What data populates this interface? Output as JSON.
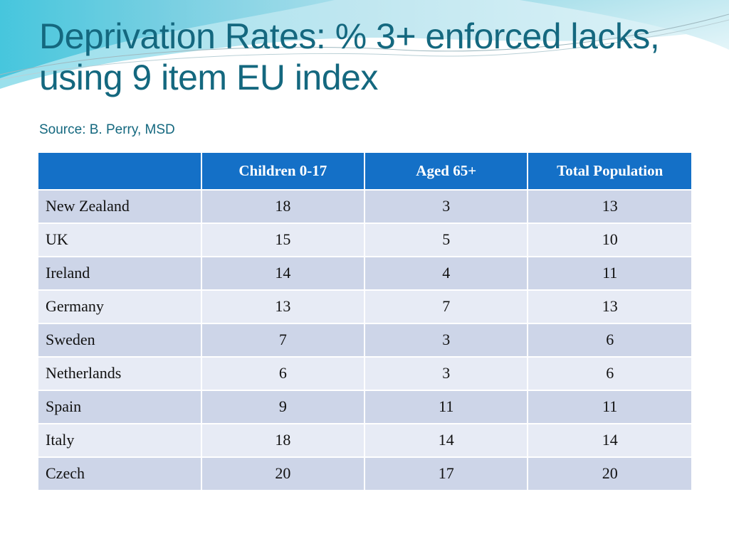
{
  "slide": {
    "title": "Deprivation Rates: % 3+ enforced lacks, using 9 item EU index",
    "source": "Source: B. Perry, MSD"
  },
  "table": {
    "headers": [
      "",
      "Children 0-17",
      "Aged 65+",
      "Total Population"
    ],
    "rows": [
      {
        "country": "New Zealand",
        "children": "18",
        "aged": "3",
        "total": "13"
      },
      {
        "country": "UK",
        "children": "15",
        "aged": "5",
        "total": "10"
      },
      {
        "country": "Ireland",
        "children": "14",
        "aged": "4",
        "total": "11"
      },
      {
        "country": "Germany",
        "children": "13",
        "aged": "7",
        "total": "13"
      },
      {
        "country": "Sweden",
        "children": "7",
        "aged": "3",
        "total": "6"
      },
      {
        "country": "Netherlands",
        "children": "6",
        "aged": "3",
        "total": "6"
      },
      {
        "country": "Spain",
        "children": "9",
        "aged": "11",
        "total": "11"
      },
      {
        "country": "Italy",
        "children": "18",
        "aged": "14",
        "total": "14"
      },
      {
        "country": "Czech",
        "children": "20",
        "aged": "17",
        "total": "20"
      }
    ]
  },
  "colors": {
    "title": "#14687f",
    "header_bg": "#1470c7",
    "row_odd": "#cdd5e8",
    "row_even": "#e7ebf5"
  }
}
